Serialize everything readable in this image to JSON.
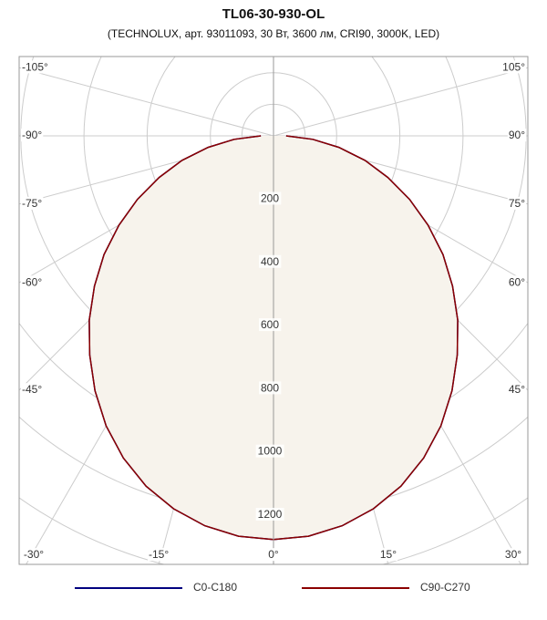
{
  "chart_data": {
    "type": "polar",
    "title": "TL06-30-930-OL",
    "subtitle": "(TECHNOLUX, арт. 93011093, 30 Вт, 3600 лм, CRI90, 3000K, LED)",
    "angles": [
      0,
      5,
      10,
      15,
      20,
      25,
      30,
      35,
      40,
      45,
      50,
      55,
      60,
      65,
      70,
      75,
      80,
      85,
      90
    ],
    "series": [
      {
        "name": "C0-C180",
        "color": "#00007f",
        "values": [
          1278,
          1272,
          1253,
          1222,
          1180,
          1125,
          1060,
          985,
          905,
          825,
          740,
          655,
          565,
          475,
          385,
          300,
          210,
          125,
          40
        ]
      },
      {
        "name": "C90-C270",
        "color": "#8b0000",
        "values": [
          1278,
          1272,
          1253,
          1222,
          1180,
          1125,
          1060,
          985,
          905,
          825,
          740,
          655,
          565,
          475,
          385,
          300,
          210,
          125,
          40
        ]
      }
    ],
    "rticks": [
      200,
      400,
      600,
      800,
      1000,
      1200
    ],
    "angleticks": [
      {
        "value": -105,
        "label": "-105°"
      },
      {
        "value": -90,
        "label": "-90°"
      },
      {
        "value": -75,
        "label": "-75°"
      },
      {
        "value": -60,
        "label": "-60°"
      },
      {
        "value": -45,
        "label": "-45°"
      },
      {
        "value": -30,
        "label": "-30°"
      },
      {
        "value": -15,
        "label": "-15°"
      },
      {
        "value": 0,
        "label": "0°"
      },
      {
        "value": 15,
        "label": "15°"
      },
      {
        "value": 30,
        "label": "30°"
      },
      {
        "value": 45,
        "label": "45°"
      },
      {
        "value": 60,
        "label": "60°"
      },
      {
        "value": 75,
        "label": "75°"
      },
      {
        "value": 90,
        "label": "90°"
      },
      {
        "value": 105,
        "label": "105°"
      }
    ],
    "fill": "#f7f3ec"
  }
}
